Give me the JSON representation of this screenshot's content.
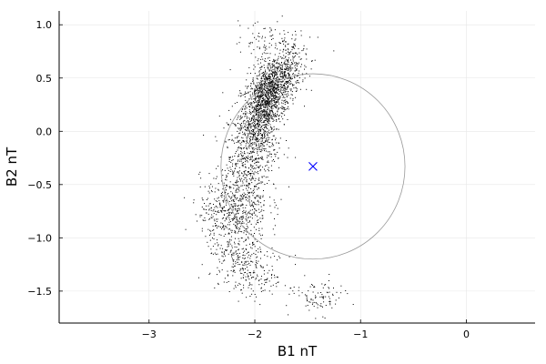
{
  "chart_data": {
    "type": "scatter",
    "title": "",
    "xlabel": "B1 nT",
    "ylabel": "B2 nT",
    "xlim": [
      -3.85,
      0.65
    ],
    "ylim": [
      -1.8,
      1.13
    ],
    "xticks": [
      -3,
      -2,
      -1,
      0
    ],
    "xtick_labels": [
      "−3",
      "−2",
      "−1",
      "0"
    ],
    "yticks": [
      1.0,
      0.5,
      0.0,
      -0.5,
      -1.0,
      -1.5
    ],
    "ytick_labels": [
      "1.0",
      "0.5",
      "0.0",
      "−0.5",
      "−1.0",
      "−1.5"
    ],
    "grid": true,
    "legend": "none",
    "colors": {
      "points": "#000000",
      "circle": "#999999",
      "center_marker": "#0000ff",
      "grid": "#e6e6e6"
    },
    "point_clusters": [
      {
        "cx": -1.85,
        "cy": 0.38,
        "sx": 0.14,
        "sy": 0.2,
        "n": 1400,
        "rho": 0.6
      },
      {
        "cx": -1.95,
        "cy": 0.15,
        "sx": 0.08,
        "sy": 0.18,
        "n": 350,
        "rho": 0.2
      },
      {
        "cx": -2.05,
        "cy": -0.25,
        "sx": 0.13,
        "sy": 0.22,
        "n": 500,
        "rho": 0.3
      },
      {
        "cx": -2.2,
        "cy": -0.72,
        "sx": 0.16,
        "sy": 0.17,
        "n": 550,
        "rho": 0.1
      },
      {
        "cx": -2.15,
        "cy": -1.2,
        "sx": 0.14,
        "sy": 0.15,
        "n": 220,
        "rho": 0.0
      },
      {
        "cx": -1.95,
        "cy": -1.35,
        "sx": 0.14,
        "sy": 0.12,
        "n": 120,
        "rho": -0.2
      },
      {
        "cx": -1.4,
        "cy": -1.56,
        "sx": 0.12,
        "sy": 0.08,
        "n": 90,
        "rho": 0.0
      },
      {
        "cx": -1.9,
        "cy": 0.85,
        "sx": 0.15,
        "sy": 0.1,
        "n": 80,
        "rho": 0.0
      }
    ],
    "circle": {
      "center": [
        -1.45,
        -0.33
      ],
      "radius": 0.87
    },
    "center_marker": {
      "x": -1.45,
      "y": -0.33,
      "shape": "x"
    }
  }
}
